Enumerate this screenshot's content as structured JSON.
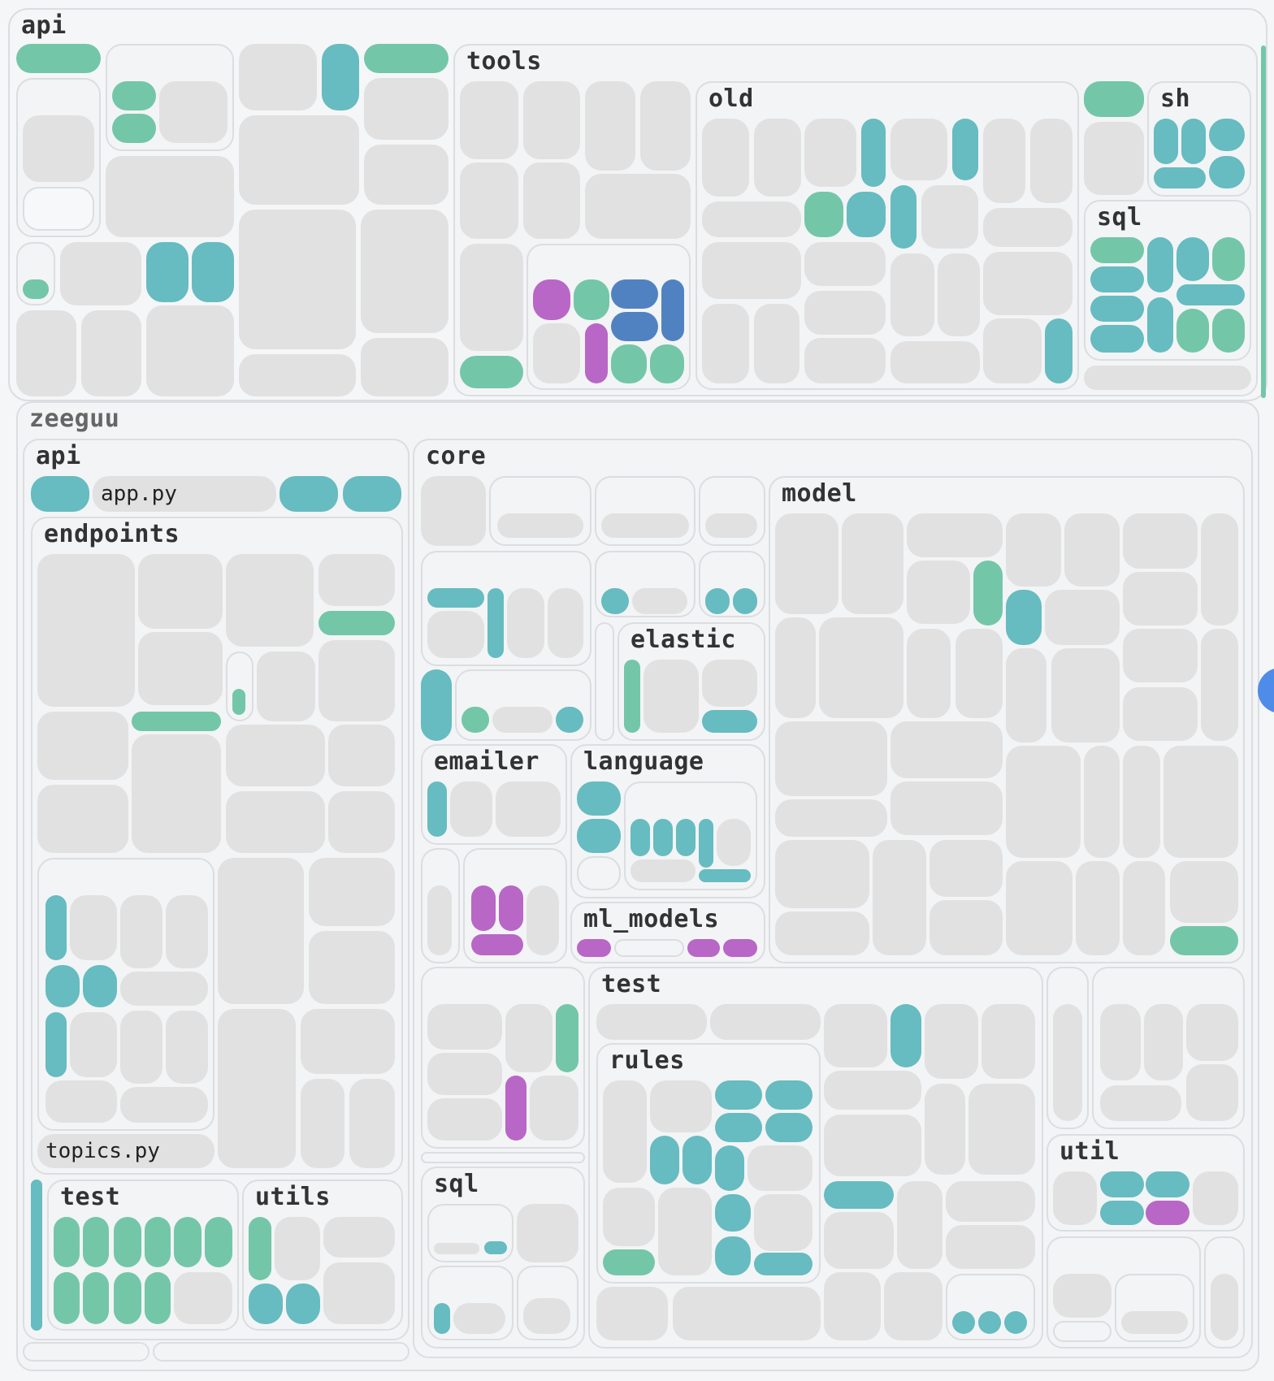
{
  "groups": {
    "api_root": "api",
    "tools": "tools",
    "old": "old",
    "sh": "sh",
    "sql_tools": "sql",
    "zeeguu": "zeeguu",
    "zeeguu_api": "api",
    "endpoints": "endpoints",
    "core": "core",
    "model": "model",
    "elastic": "elastic",
    "emailer": "emailer",
    "language": "language",
    "ml_models": "ml_models",
    "test_api": "test",
    "utils": "utils",
    "test_core": "test",
    "rules": "rules",
    "sql_core": "sql",
    "util": "util"
  },
  "files": {
    "app_py": "app.py",
    "topics_py": "topics.py"
  },
  "colors": {
    "neutral": "#e1e1e1",
    "teal": "#66bcc0",
    "green": "#74c6a9",
    "purple": "#b867c6",
    "blue": "#5082c1",
    "scroll_dot": "#4f8be8"
  }
}
